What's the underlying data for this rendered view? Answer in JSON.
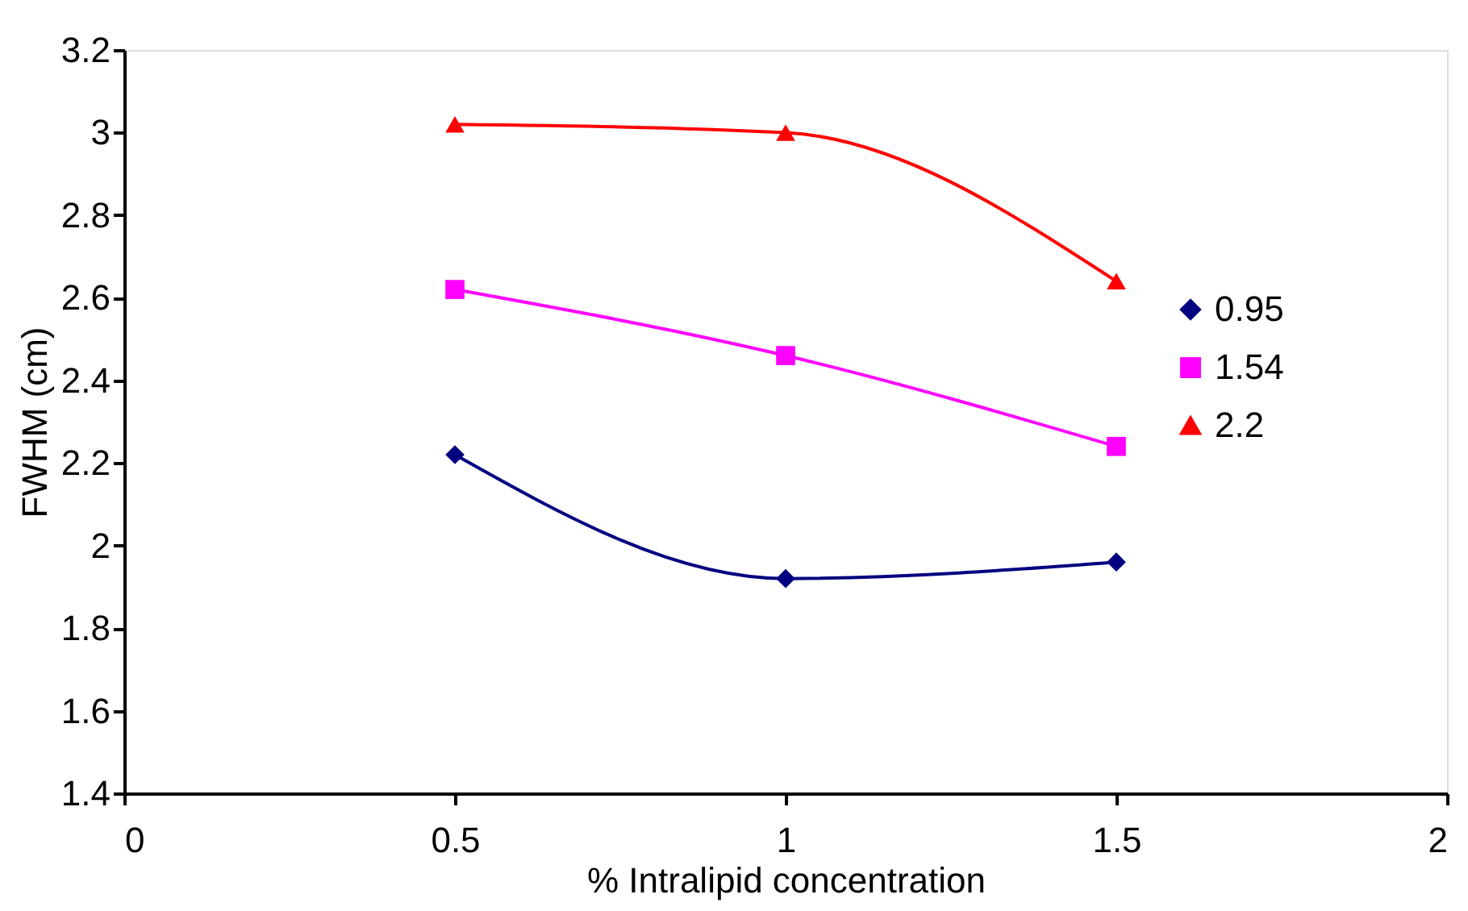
{
  "chart_data": {
    "type": "line",
    "xlabel": "% Intralipid concentration",
    "ylabel": "FWHM (cm)",
    "x": [
      0.5,
      1,
      1.5
    ],
    "series": [
      {
        "name": "0.95",
        "color": "#000080",
        "marker": "diamond",
        "values": [
          2.22,
          1.92,
          1.96
        ]
      },
      {
        "name": "1.54",
        "color": "#ff00ff",
        "marker": "square",
        "values": [
          2.62,
          2.46,
          2.24
        ]
      },
      {
        "name": "2.2",
        "color": "#ff0000",
        "marker": "triangle",
        "values": [
          3.02,
          3.0,
          2.64
        ]
      }
    ],
    "xlim": [
      0,
      2
    ],
    "xticks": [
      0,
      0.5,
      1,
      1.5,
      2
    ],
    "ylim": [
      1.4,
      3.2
    ],
    "yticks": [
      1.4,
      1.6,
      1.8,
      2,
      2.2,
      2.4,
      2.6,
      2.8,
      3,
      3.2
    ],
    "grid": false,
    "legend": "right",
    "line_style": "solid"
  }
}
